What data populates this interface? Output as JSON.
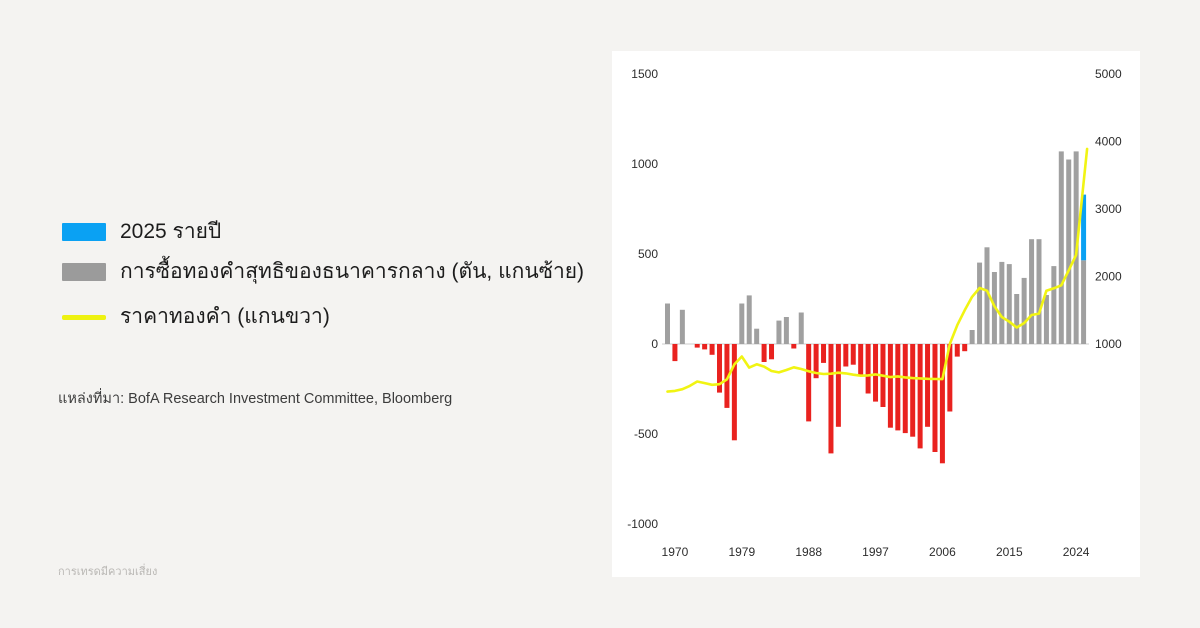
{
  "page": {
    "background_color": "#f4f3f1",
    "panel_color": "#ffffff"
  },
  "legend": {
    "items": [
      {
        "label": "2025 รายปี",
        "swatch": "blue-rect",
        "color": "#0aa1f3"
      },
      {
        "label": "การซื้อทองคำสุทธิของธนาคารกลาง (ตัน, แกนซ้าย)",
        "swatch": "gray-rect",
        "color": "#9b9b9b"
      },
      {
        "label": "ราคาทองคำ (แกนขวา)",
        "swatch": "yellow-line",
        "color": "#eef211"
      }
    ]
  },
  "source": {
    "label": "แหล่งที่มา: BofA Research Investment Committee, Bloomberg"
  },
  "footer": {
    "disclaimer": "การเทรดมีความเสี่ยง"
  },
  "chart_data": {
    "type": "bar",
    "title": "",
    "x": [
      1969,
      1970,
      1971,
      1972,
      1973,
      1974,
      1975,
      1976,
      1977,
      1978,
      1979,
      1980,
      1981,
      1982,
      1983,
      1984,
      1985,
      1986,
      1987,
      1988,
      1989,
      1990,
      1991,
      1992,
      1993,
      1994,
      1995,
      1996,
      1997,
      1998,
      1999,
      2000,
      2001,
      2002,
      2003,
      2004,
      2005,
      2006,
      2007,
      2008,
      2009,
      2010,
      2011,
      2012,
      2013,
      2014,
      2015,
      2016,
      2017,
      2018,
      2019,
      2020,
      2021,
      2022,
      2023,
      2024,
      2025
    ],
    "series": [
      {
        "name": "central-bank-net-gold-purchases",
        "label": "การซื้อทองคำสุทธิของธนาคารกลาง (ตัน, แกนซ้าย)",
        "axis": "left",
        "type": "bar",
        "color_positive": "#a0a0a0",
        "color_negative": "#e9221f",
        "values": [
          225,
          -95,
          190,
          0,
          -20,
          -30,
          -60,
          -270,
          -355,
          -535,
          225,
          270,
          85,
          -100,
          -85,
          130,
          150,
          -25,
          175,
          -430,
          -190,
          -105,
          -608,
          -460,
          -125,
          -115,
          -170,
          -275,
          -320,
          -350,
          -465,
          -480,
          -495,
          -515,
          -580,
          -460,
          -600,
          -663,
          -375,
          -70,
          -40,
          78,
          452,
          537,
          400,
          456,
          444,
          278,
          367,
          582,
          582,
          272,
          433,
          1070,
          1025,
          1070,
          830
        ]
      },
      {
        "name": "gold-price",
        "label": "ราคาทองคำ (แกนขวา)",
        "axis": "right",
        "type": "line",
        "color": "#f1f413",
        "values": [
          295,
          305,
          330,
          380,
          445,
          420,
          395,
          405,
          475,
          700,
          815,
          650,
          700,
          665,
          600,
          580,
          615,
          655,
          630,
          595,
          570,
          555,
          560,
          575,
          565,
          545,
          530,
          535,
          550,
          530,
          510,
          520,
          505,
          495,
          490,
          485,
          482,
          480,
          1000,
          1280,
          1500,
          1700,
          1830,
          1790,
          1560,
          1400,
          1330,
          1245,
          1310,
          1430,
          1450,
          1790,
          1825,
          1870,
          2090,
          2320,
          3890
        ]
      }
    ],
    "bar_2025": {
      "year": 2025,
      "actual": 465,
      "annualized": 830,
      "color": "#0aa1f3",
      "note_label": "2025 รายปี"
    },
    "left_axis": {
      "ticks": [
        1500,
        1000,
        500,
        0,
        -500,
        -1000
      ],
      "range": [
        -1000,
        1500
      ]
    },
    "right_axis": {
      "ticks": [
        5000,
        4000,
        3000,
        2000,
        1000
      ],
      "range": [
        1000,
        5000
      ]
    },
    "x_axis": {
      "ticks": [
        1970,
        1979,
        1988,
        1997,
        2006,
        2015,
        2024
      ],
      "range": [
        1969,
        2025
      ]
    },
    "grid": false,
    "legend_position": "left-outside"
  }
}
